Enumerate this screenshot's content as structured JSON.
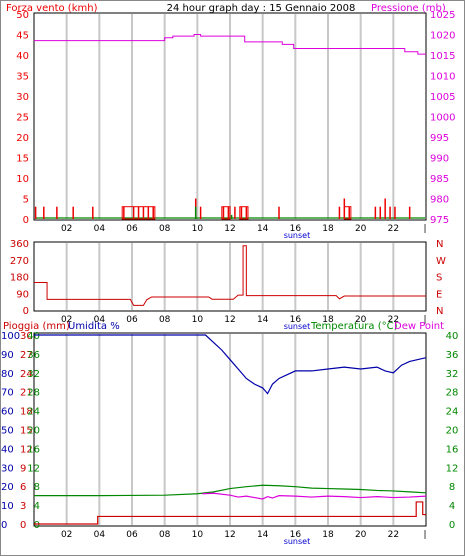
{
  "header": {
    "left_label": "Forza vento (kmh)",
    "title": "24 hour graph day : 15 Gennaio 2008",
    "right_label": "Pressione (mb)"
  },
  "colors": {
    "wind": "#ee0000",
    "gust": "#008800",
    "pressure": "#dd00dd",
    "direction": "#cc0000",
    "rain": "#cc0000",
    "humidity": "#0000aa",
    "temperature": "#008800",
    "dewpoint": "#dd00dd",
    "grid": "#c8c8c8",
    "sunset": "#0000cc"
  },
  "chart_data": [
    {
      "type": "bar",
      "name": "wind-pressure",
      "title": "24 hour graph day : 15 Gennaio 2008",
      "ylabel_left": "Forza vento (kmh)",
      "ylabel_right": "Pressione (mb)",
      "left_ticks": [
        "0",
        "5",
        "10",
        "15",
        "20",
        "25",
        "30",
        "35",
        "40",
        "45",
        "50"
      ],
      "left_ylim": [
        0,
        50
      ],
      "right_ticks": [
        "975",
        "980",
        "985",
        "990",
        "995",
        "1000",
        "1005",
        "1010",
        "1015",
        "1020",
        "1025"
      ],
      "right_ylim": [
        975,
        1025
      ],
      "x_ticks": [
        "02",
        "04",
        "06",
        "08",
        "10",
        "12",
        "14",
        "16",
        "18",
        "20",
        "22"
      ],
      "xlim": [
        0,
        24
      ],
      "sunset_label": "sunset",
      "sunset_hour": 16.1,
      "grid": true,
      "wind_bars": [
        {
          "x": 0.1,
          "y": 3
        },
        {
          "x": 0.6,
          "y": 3
        },
        {
          "x": 1.4,
          "y": 3
        },
        {
          "x": 2.4,
          "y": 3
        },
        {
          "x": 3.6,
          "y": 3
        },
        {
          "x": 5.5,
          "y": 3
        },
        {
          "x": 6.1,
          "y": 3
        },
        {
          "x": 6.4,
          "y": 3
        },
        {
          "x": 6.7,
          "y": 3
        },
        {
          "x": 7.0,
          "y": 3
        },
        {
          "x": 7.3,
          "y": 3
        },
        {
          "x": 9.9,
          "y": 5
        },
        {
          "x": 10.2,
          "y": 3
        },
        {
          "x": 11.6,
          "y": 3
        },
        {
          "x": 11.9,
          "y": 3
        },
        {
          "x": 12.3,
          "y": 3
        },
        {
          "x": 12.7,
          "y": 3
        },
        {
          "x": 13.0,
          "y": 3
        },
        {
          "x": 15.0,
          "y": 3
        },
        {
          "x": 18.7,
          "y": 3
        },
        {
          "x": 19.0,
          "y": 5
        },
        {
          "x": 19.3,
          "y": 3
        },
        {
          "x": 20.9,
          "y": 3
        },
        {
          "x": 21.2,
          "y": 3
        },
        {
          "x": 21.5,
          "y": 5
        },
        {
          "x": 21.8,
          "y": 3
        },
        {
          "x": 22.1,
          "y": 3
        },
        {
          "x": 23.0,
          "y": 3
        }
      ],
      "wind_boxes": [
        {
          "x0": 5.4,
          "x1": 7.4,
          "y": 3
        },
        {
          "x0": 11.5,
          "x1": 12.0,
          "y": 3
        },
        {
          "x0": 12.6,
          "x1": 13.1,
          "y": 3
        },
        {
          "x0": 19.0,
          "x1": 19.4,
          "y": 3
        }
      ],
      "gust_spikes": [
        {
          "x": 9.9,
          "y": 3
        },
        {
          "x": 12.1,
          "y": 1
        }
      ],
      "pressure": [
        {
          "x": 0,
          "y": 1018.5
        },
        {
          "x": 8.0,
          "y": 1018.5
        },
        {
          "x": 8.0,
          "y": 1019.2
        },
        {
          "x": 8.5,
          "y": 1019.2
        },
        {
          "x": 8.5,
          "y": 1019.6
        },
        {
          "x": 9.8,
          "y": 1019.6
        },
        {
          "x": 9.8,
          "y": 1020.0
        },
        {
          "x": 10.2,
          "y": 1020.0
        },
        {
          "x": 10.2,
          "y": 1019.6
        },
        {
          "x": 12.9,
          "y": 1019.6
        },
        {
          "x": 12.9,
          "y": 1018.2
        },
        {
          "x": 15.2,
          "y": 1018.2
        },
        {
          "x": 15.2,
          "y": 1017.6
        },
        {
          "x": 15.9,
          "y": 1017.6
        },
        {
          "x": 15.9,
          "y": 1016.6
        },
        {
          "x": 22.7,
          "y": 1016.6
        },
        {
          "x": 22.7,
          "y": 1015.8
        },
        {
          "x": 23.5,
          "y": 1015.8
        },
        {
          "x": 23.5,
          "y": 1015.2
        },
        {
          "x": 24,
          "y": 1015.2
        }
      ]
    },
    {
      "type": "line",
      "name": "wind-direction",
      "left_ticks": [
        "0",
        "90",
        "180",
        "270",
        "360"
      ],
      "ylim": [
        0,
        360
      ],
      "right_labels": [
        "N",
        "W",
        "S",
        "E",
        "N"
      ],
      "x_ticks": [
        "02",
        "04",
        "06",
        "08",
        "10",
        "12",
        "14",
        "16",
        "18",
        "20",
        "22"
      ],
      "xlim": [
        0,
        24
      ],
      "sunset_label": "sunset",
      "grid": true,
      "direction": [
        {
          "x": 0,
          "y": 148
        },
        {
          "x": 0.8,
          "y": 148
        },
        {
          "x": 0.8,
          "y": 57
        },
        {
          "x": 5.9,
          "y": 57
        },
        {
          "x": 6.1,
          "y": 25
        },
        {
          "x": 6.7,
          "y": 25
        },
        {
          "x": 6.9,
          "y": 55
        },
        {
          "x": 7.2,
          "y": 70
        },
        {
          "x": 10.7,
          "y": 70
        },
        {
          "x": 10.9,
          "y": 58
        },
        {
          "x": 12.2,
          "y": 58
        },
        {
          "x": 12.5,
          "y": 80
        },
        {
          "x": 12.8,
          "y": 80
        },
        {
          "x": 12.8,
          "y": 345
        },
        {
          "x": 13.0,
          "y": 345
        },
        {
          "x": 13.0,
          "y": 77
        },
        {
          "x": 18.5,
          "y": 77
        },
        {
          "x": 18.7,
          "y": 60
        },
        {
          "x": 19.0,
          "y": 75
        },
        {
          "x": 24,
          "y": 75
        }
      ]
    },
    {
      "type": "line",
      "name": "rain-humidity-temperature",
      "ylabel_rain": "Pioggia (mm)",
      "ylabel_humidity": "Umidita %",
      "ylabel_temperature": "Temperatura (°C)",
      "ylabel_dewpoint": "Dew Point",
      "rain_ticks": [
        "0",
        "3",
        "6",
        "9",
        "12",
        "15",
        "18",
        "21",
        "24",
        "27",
        "30"
      ],
      "rain_ylim": [
        0,
        30
      ],
      "humidity_ticks": [
        "0",
        "10",
        "20",
        "30",
        "40",
        "50",
        "60",
        "70",
        "80",
        "90",
        "100"
      ],
      "humidity_ylim": [
        0,
        100
      ],
      "temp_ticks_left": [
        "0",
        "4",
        "8",
        "12",
        "16",
        "20",
        "24",
        "28",
        "32",
        "36",
        "40"
      ],
      "temp_ticks_right": [
        "0",
        "4",
        "8",
        "12",
        "16",
        "20",
        "24",
        "28",
        "32",
        "36",
        "40"
      ],
      "temp_ylim": [
        0,
        40
      ],
      "x_ticks": [
        "02",
        "04",
        "06",
        "08",
        "10",
        "12",
        "14",
        "16",
        "18",
        "20",
        "22"
      ],
      "xlim": [
        0,
        24
      ],
      "sunset_label": "sunset",
      "grid": true,
      "rain": [
        {
          "x": 0,
          "y": 0
        },
        {
          "x": 3.9,
          "y": 0
        },
        {
          "x": 3.9,
          "y": 1.2
        },
        {
          "x": 23.4,
          "y": 1.2
        },
        {
          "x": 23.4,
          "y": 3.5
        },
        {
          "x": 23.8,
          "y": 3.5
        },
        {
          "x": 23.8,
          "y": 1.5
        },
        {
          "x": 24,
          "y": 1.5
        }
      ],
      "humidity": [
        {
          "x": 0,
          "y": 100
        },
        {
          "x": 10.5,
          "y": 100
        },
        {
          "x": 11.0,
          "y": 96
        },
        {
          "x": 11.5,
          "y": 92
        },
        {
          "x": 12.0,
          "y": 87
        },
        {
          "x": 12.5,
          "y": 82
        },
        {
          "x": 13.0,
          "y": 77
        },
        {
          "x": 13.5,
          "y": 74
        },
        {
          "x": 14.0,
          "y": 72
        },
        {
          "x": 14.3,
          "y": 69
        },
        {
          "x": 14.6,
          "y": 74
        },
        {
          "x": 15.0,
          "y": 77
        },
        {
          "x": 15.5,
          "y": 79
        },
        {
          "x": 16.0,
          "y": 81
        },
        {
          "x": 17.0,
          "y": 81
        },
        {
          "x": 18.0,
          "y": 82
        },
        {
          "x": 19.0,
          "y": 83
        },
        {
          "x": 20.0,
          "y": 82
        },
        {
          "x": 21.0,
          "y": 83
        },
        {
          "x": 21.5,
          "y": 81
        },
        {
          "x": 22.0,
          "y": 80
        },
        {
          "x": 22.5,
          "y": 84
        },
        {
          "x": 23.0,
          "y": 86
        },
        {
          "x": 23.5,
          "y": 87
        },
        {
          "x": 24,
          "y": 88
        }
      ],
      "temperature": [
        {
          "x": 0,
          "y": 6.0
        },
        {
          "x": 4.0,
          "y": 6.0
        },
        {
          "x": 8.0,
          "y": 6.1
        },
        {
          "x": 10.0,
          "y": 6.4
        },
        {
          "x": 11.0,
          "y": 6.8
        },
        {
          "x": 12.0,
          "y": 7.5
        },
        {
          "x": 13.0,
          "y": 7.9
        },
        {
          "x": 14.0,
          "y": 8.2
        },
        {
          "x": 15.0,
          "y": 8.1
        },
        {
          "x": 16.0,
          "y": 7.9
        },
        {
          "x": 17.0,
          "y": 7.6
        },
        {
          "x": 18.0,
          "y": 7.5
        },
        {
          "x": 19.0,
          "y": 7.4
        },
        {
          "x": 20.0,
          "y": 7.3
        },
        {
          "x": 21.0,
          "y": 7.1
        },
        {
          "x": 22.0,
          "y": 7.0
        },
        {
          "x": 23.0,
          "y": 6.8
        },
        {
          "x": 24,
          "y": 6.6
        }
      ],
      "dewpoint": [
        {
          "x": 10.3,
          "y": 6.4
        },
        {
          "x": 11.0,
          "y": 6.5
        },
        {
          "x": 12.0,
          "y": 6.1
        },
        {
          "x": 12.5,
          "y": 5.7
        },
        {
          "x": 13.0,
          "y": 5.9
        },
        {
          "x": 13.5,
          "y": 5.6
        },
        {
          "x": 14.0,
          "y": 5.3
        },
        {
          "x": 14.3,
          "y": 5.8
        },
        {
          "x": 14.6,
          "y": 5.5
        },
        {
          "x": 15.0,
          "y": 6.0
        },
        {
          "x": 16.0,
          "y": 5.9
        },
        {
          "x": 17.0,
          "y": 5.7
        },
        {
          "x": 18.0,
          "y": 5.9
        },
        {
          "x": 19.0,
          "y": 5.8
        },
        {
          "x": 20.0,
          "y": 5.6
        },
        {
          "x": 21.0,
          "y": 5.8
        },
        {
          "x": 22.0,
          "y": 5.6
        },
        {
          "x": 23.0,
          "y": 5.7
        },
        {
          "x": 24,
          "y": 5.9
        }
      ]
    }
  ]
}
